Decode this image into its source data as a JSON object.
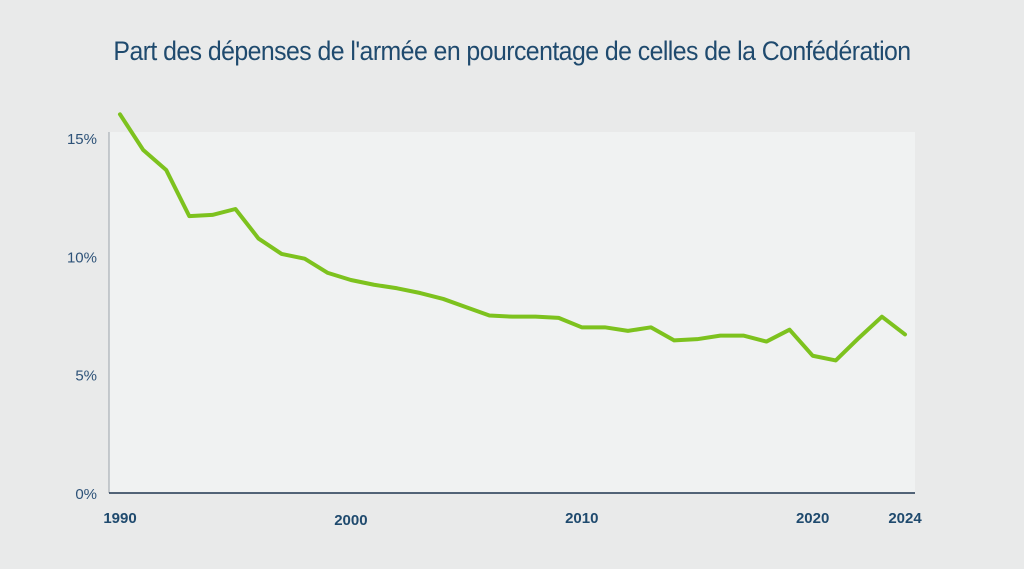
{
  "chart_data": {
    "type": "line",
    "title": "Part des dépenses de l'armée en pourcentage de celles de la Confédération",
    "xlabel": "",
    "ylabel": "",
    "ylim": [
      0,
      15
    ],
    "xlim": [
      1990,
      2024
    ],
    "y_ticks": [
      "0%",
      "5%",
      "10%",
      "15%"
    ],
    "y_tick_values": [
      0,
      5,
      10,
      15
    ],
    "x_ticks": [
      "1990",
      "2000",
      "2010",
      "2020",
      "2024"
    ],
    "x_tick_values": [
      1990,
      2000,
      2010,
      2020,
      2024
    ],
    "grid": false,
    "series": [
      {
        "name": "Part des dépenses de l'armée",
        "color": "#7dc21e",
        "x": [
          1990,
          1991,
          1992,
          1993,
          1994,
          1995,
          1996,
          1997,
          1998,
          1999,
          2000,
          2001,
          2002,
          2003,
          2004,
          2005,
          2006,
          2007,
          2008,
          2009,
          2010,
          2011,
          2012,
          2013,
          2014,
          2015,
          2016,
          2017,
          2018,
          2019,
          2020,
          2021,
          2022,
          2023,
          2024
        ],
        "values": [
          16.0,
          14.5,
          13.65,
          11.7,
          11.75,
          12.0,
          10.75,
          10.1,
          9.9,
          9.3,
          9.0,
          8.8,
          8.65,
          8.45,
          8.2,
          7.85,
          7.5,
          7.45,
          7.45,
          7.4,
          7.0,
          7.0,
          6.85,
          7.0,
          6.45,
          6.5,
          6.65,
          6.65,
          6.4,
          6.9,
          5.8,
          5.6,
          6.55,
          7.45,
          6.7
        ]
      }
    ]
  }
}
